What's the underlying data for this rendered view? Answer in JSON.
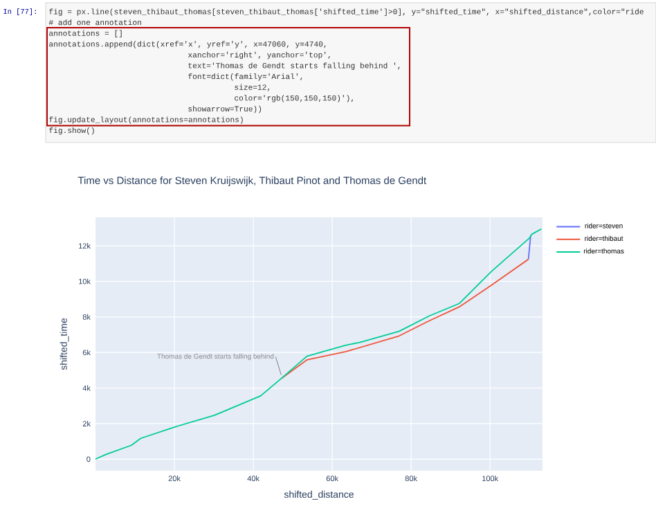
{
  "chart_data": {
    "type": "line",
    "title": "Time vs Distance for Steven Kruijswijk, Thibaut Pinot and Thomas de Gendt",
    "xlabel": "shifted_distance",
    "ylabel": "shifted_time",
    "xlim": [
      0,
      113300
    ],
    "ylim": [
      -650,
      13600
    ],
    "xticks": [
      {
        "value": 20000,
        "label": "20k"
      },
      {
        "value": 40000,
        "label": "40k"
      },
      {
        "value": 60000,
        "label": "60k"
      },
      {
        "value": 80000,
        "label": "80k"
      },
      {
        "value": 100000,
        "label": "100k"
      }
    ],
    "yticks": [
      0,
      {
        "value": 2000,
        "label": "2k"
      },
      {
        "value": 4000,
        "label": "4k"
      },
      {
        "value": 6000,
        "label": "6k"
      },
      {
        "value": 8000,
        "label": "8k"
      },
      {
        "value": 10000,
        "label": "10k"
      },
      {
        "value": 12000,
        "label": "12k"
      }
    ],
    "grid": true,
    "legend": "top right",
    "series": [
      {
        "name": "rider=steven",
        "color": "#636efa",
        "x": [
          109720,
          110300
        ],
        "values": [
          11240,
          12580
        ]
      },
      {
        "name": "rider=thibaut",
        "color": "#ef553b",
        "x": [
          47120,
          53580,
          63510,
          76950,
          84560,
          92180,
          100350,
          109720
        ],
        "values": [
          4540,
          5580,
          6050,
          6930,
          7780,
          8560,
          9780,
          11240
        ]
      },
      {
        "name": "rider=thomas",
        "color": "#00cc96",
        "x": [
          0,
          2700,
          9100,
          11470,
          20240,
          30180,
          41860,
          47120,
          53580,
          63510,
          67020,
          76950,
          84560,
          92180,
          100350,
          110070,
          110530,
          113000
        ],
        "values": [
          0,
          270,
          780,
          1170,
          1820,
          2470,
          3560,
          4540,
          5790,
          6410,
          6570,
          7190,
          8050,
          8750,
          10560,
          12450,
          12640,
          12950
        ]
      }
    ],
    "annotations": [
      {
        "text": "Thomas de Gendt starts falling behind",
        "x": 47060,
        "y": 4740
      },
      "In [77]:",
      "fig = px.line(steven_thibaut_thomas[steven_thibaut_thomas['shifted_time']>0], y=\"shifted_time\", x=\"shifted_distance\",color=\"ride",
      "# add one annotation",
      "annotations = []",
      "annotations.append(dict(xref='x', yref='y', x=47060, y=4740,",
      "xanchor='right', yanchor='top',",
      "text='Thomas de Gendt starts falling behind ',",
      "font=dict(family='Arial',",
      "size=12,",
      "color='rgb(150,150,150)'),",
      "showarrow=True))",
      "fig.update_layout(annotations=annotations)",
      "fig.show()"
    ]
  }
}
